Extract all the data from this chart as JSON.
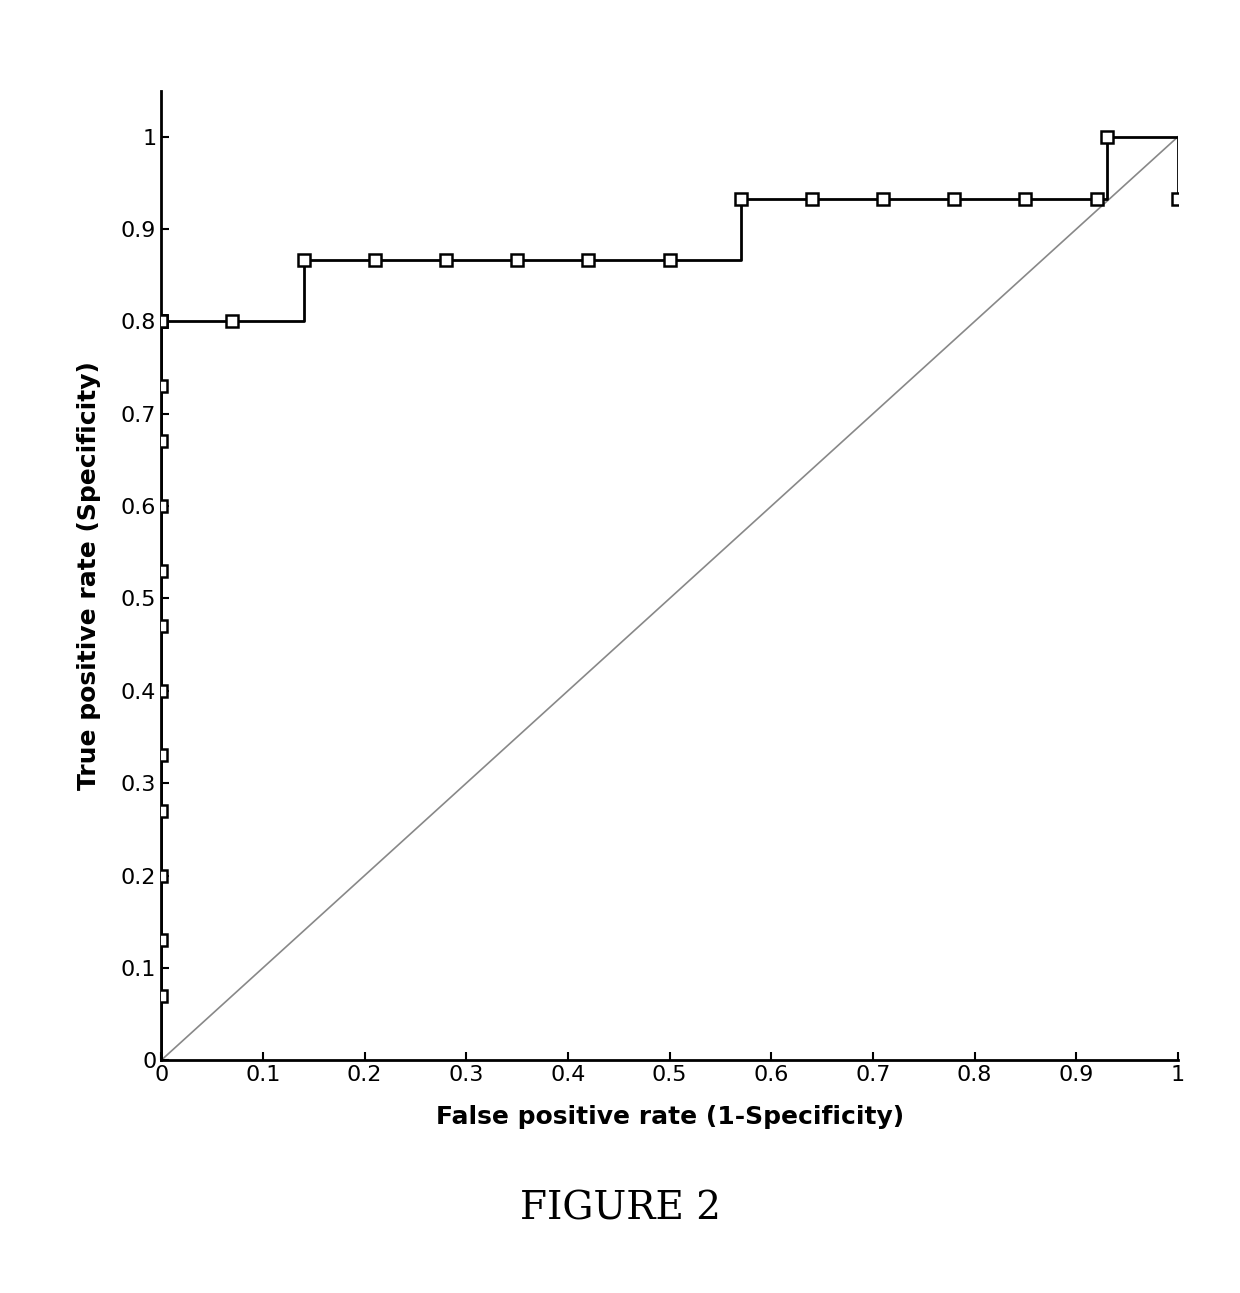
{
  "roc_fpr": [
    0,
    0,
    0.07,
    0.14,
    0.14,
    0.21,
    0.28,
    0.35,
    0.42,
    0.5,
    0.57,
    0.57,
    0.64,
    0.71,
    0.78,
    0.85,
    0.92,
    0.93,
    0.93,
    1.0,
    1.0
  ],
  "roc_tpr": [
    0,
    0.8,
    0.8,
    0.8,
    0.867,
    0.867,
    0.867,
    0.867,
    0.867,
    0.867,
    0.867,
    0.933,
    0.933,
    0.933,
    0.933,
    0.933,
    0.933,
    0.933,
    1.0,
    1.0,
    0.933
  ],
  "marker_fpr": [
    0,
    0.07,
    0.14,
    0.21,
    0.28,
    0.35,
    0.42,
    0.5,
    0.57,
    0.64,
    0.71,
    0.78,
    0.85,
    0.92,
    0.93,
    1.0
  ],
  "marker_tpr": [
    0.8,
    0.8,
    0.867,
    0.867,
    0.867,
    0.867,
    0.867,
    0.867,
    0.933,
    0.933,
    0.933,
    0.933,
    0.933,
    0.933,
    1.0,
    0.933
  ],
  "left_markers_fpr": [
    0,
    0,
    0,
    0,
    0,
    0,
    0,
    0,
    0,
    0,
    0,
    0,
    0
  ],
  "left_markers_tpr": [
    0.07,
    0.13,
    0.2,
    0.27,
    0.33,
    0.4,
    0.47,
    0.53,
    0.6,
    0.67,
    0.73,
    0.8,
    0.8
  ],
  "diag_line_x": [
    0,
    1
  ],
  "diag_line_y": [
    0,
    1
  ],
  "xlabel": "False positive rate (1-Specificity)",
  "ylabel": "True positive rate (Specificity)",
  "figure_label": "FIGURE 2",
  "xlim": [
    0,
    1
  ],
  "ylim": [
    0,
    1.05
  ],
  "xticks": [
    0,
    0.1,
    0.2,
    0.3,
    0.4,
    0.5,
    0.6,
    0.7,
    0.8,
    0.9,
    1
  ],
  "yticks": [
    0,
    0.1,
    0.2,
    0.3,
    0.4,
    0.5,
    0.6,
    0.7,
    0.8,
    0.9,
    1
  ],
  "line_color": "#000000",
  "diag_color": "#888888",
  "marker_color": "#000000",
  "background_color": "#ffffff",
  "xlabel_fontsize": 18,
  "ylabel_fontsize": 18,
  "tick_fontsize": 16,
  "figure_label_fontsize": 28
}
